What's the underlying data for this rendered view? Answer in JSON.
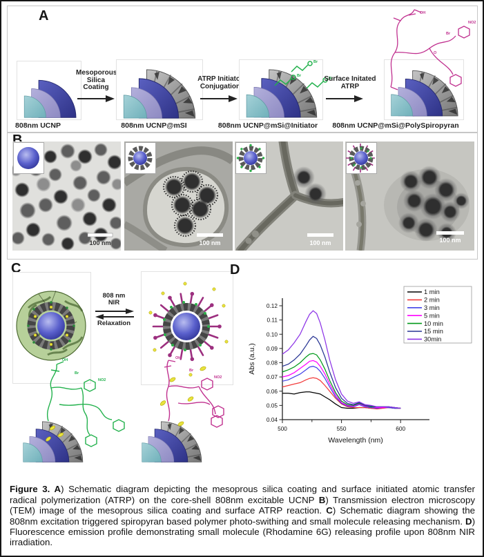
{
  "figure": {
    "panels": {
      "a": {
        "label": "A",
        "steps": [
          {
            "caption": "808nm UCNP"
          },
          {
            "caption": "808nm UCNP@mSI"
          },
          {
            "caption": "808nm UCNP@mSi@Initiator"
          },
          {
            "caption": "808nm UCNP@mSi@PolySpiropyran"
          }
        ],
        "arrows": [
          {
            "lines": [
              "Mesoporous",
              "Silica",
              "Coating"
            ]
          },
          {
            "lines": [
              "ATRP Initiator",
              "Conjugation"
            ]
          },
          {
            "lines": [
              "Surface Initated",
              "ATRP"
            ]
          }
        ]
      },
      "b": {
        "label": "B",
        "tem_images": [
          {
            "scale_bar": "100 nm"
          },
          {
            "scale_bar": "100 nm"
          },
          {
            "scale_bar": "100 nm"
          },
          {
            "scale_bar": "100 nm"
          }
        ]
      },
      "c": {
        "label": "C",
        "forward_arrow_lines": [
          "808 nm",
          "NIR"
        ],
        "reverse_arrow_label": "Relaxation"
      },
      "d": {
        "label": "D"
      }
    },
    "caption": {
      "segments": [
        {
          "text": "Figure 3.  ",
          "bold": true
        },
        {
          "text": "A",
          "bold": true
        },
        {
          "text": ") Schematic diagram depicting the mesoprous silica coating and surface initiated atomic transfer radical polymerization (ATRP) on the core-shell 808nm excitable UCNP ",
          "bold": false
        },
        {
          "text": "B",
          "bold": true
        },
        {
          "text": ") Transmission electron microscopy (TEM) image of the mesoprous silica coating and surface ATRP reaction. ",
          "bold": false
        },
        {
          "text": "C",
          "bold": true
        },
        {
          "text": ") Schematic diagram showing the 808nm excitation triggered spiropyran based polymer photo-swithing and small molecule releasing mechanism. ",
          "bold": false
        },
        {
          "text": "D",
          "bold": true
        },
        {
          "text": ") Fluorescence emission profile demonstrating small molecule (Rhodamine 6G) releasing profile upon 808nm NIR irradiation.",
          "bold": false
        }
      ]
    }
  },
  "molecule_labels": [
    "OH",
    "NO2",
    "Br",
    "O"
  ],
  "colors": {
    "ucnp_core_teal": "#79b4bd",
    "ucnp_mid_purple": "#9a96c8",
    "ucnp_shell_blue": "#3b3f9c",
    "silica_gray": "#8f8f8f",
    "initiator_green": "#22b14c",
    "spiropyran_magenta": "#c0308f",
    "released_yellow": "#e8e33e"
  },
  "chart_data": {
    "type": "line",
    "title": "",
    "xlabel": "Wavelength (nm)",
    "ylabel": "Abs (a.u.)",
    "xlim": [
      500,
      624
    ],
    "ylim": [
      0.04,
      0.125
    ],
    "xticks": [
      500,
      550,
      600
    ],
    "xticks_minor": [
      525,
      575
    ],
    "yticks": [
      0.04,
      0.05,
      0.06,
      0.07,
      0.08,
      0.09,
      0.1,
      0.11,
      0.12
    ],
    "grid": false,
    "legend_position": "top-right",
    "x": [
      500,
      505,
      510,
      515,
      520,
      523,
      526,
      529,
      532,
      536,
      540,
      545,
      550,
      555,
      560,
      565,
      570,
      575,
      580,
      585,
      590,
      595,
      600
    ],
    "series": [
      {
        "name": "1 min",
        "color": "#000000",
        "values": [
          0.0585,
          0.0585,
          0.058,
          0.059,
          0.0595,
          0.0595,
          0.059,
          0.0585,
          0.058,
          0.056,
          0.054,
          0.051,
          0.0485,
          0.048,
          0.048,
          0.0485,
          0.0485,
          0.048,
          0.048,
          0.0485,
          0.0485,
          0.048,
          0.048
        ]
      },
      {
        "name": "2 min",
        "color": "#f23c3c",
        "values": [
          0.063,
          0.064,
          0.065,
          0.066,
          0.068,
          0.069,
          0.0695,
          0.069,
          0.0675,
          0.064,
          0.06,
          0.055,
          0.051,
          0.049,
          0.0485,
          0.0485,
          0.0485,
          0.048,
          0.0475,
          0.048,
          0.0485,
          0.048,
          0.048
        ]
      },
      {
        "name": "3 min",
        "color": "#4343e8",
        "values": [
          0.067,
          0.068,
          0.07,
          0.072,
          0.075,
          0.077,
          0.0775,
          0.0765,
          0.074,
          0.069,
          0.063,
          0.056,
          0.0515,
          0.0495,
          0.049,
          0.0505,
          0.049,
          0.0485,
          0.048,
          0.0485,
          0.0485,
          0.048,
          0.048
        ]
      },
      {
        "name": "5 min",
        "color": "#ff00ff",
        "values": [
          0.07,
          0.071,
          0.073,
          0.076,
          0.079,
          0.081,
          0.0815,
          0.0805,
          0.0775,
          0.072,
          0.065,
          0.0575,
          0.052,
          0.05,
          0.0495,
          0.051,
          0.0495,
          0.049,
          0.0485,
          0.0485,
          0.049,
          0.0485,
          0.048
        ]
      },
      {
        "name": "10 min",
        "color": "#009919",
        "values": [
          0.0735,
          0.075,
          0.077,
          0.08,
          0.084,
          0.086,
          0.0865,
          0.0855,
          0.082,
          0.0755,
          0.0675,
          0.059,
          0.053,
          0.0505,
          0.05,
          0.0515,
          0.05,
          0.049,
          0.049,
          0.049,
          0.049,
          0.0485,
          0.048
        ]
      },
      {
        "name": "15 min",
        "color": "#273493",
        "values": [
          0.0775,
          0.079,
          0.082,
          0.086,
          0.092,
          0.096,
          0.0985,
          0.097,
          0.0925,
          0.084,
          0.0735,
          0.0625,
          0.055,
          0.0515,
          0.0505,
          0.052,
          0.05,
          0.0495,
          0.049,
          0.049,
          0.049,
          0.0485,
          0.048
        ]
      },
      {
        "name": "30min",
        "color": "#8c33e6",
        "values": [
          0.086,
          0.089,
          0.094,
          0.1,
          0.109,
          0.114,
          0.1165,
          0.1145,
          0.108,
          0.096,
          0.082,
          0.068,
          0.058,
          0.053,
          0.0515,
          0.0525,
          0.0505,
          0.05,
          0.049,
          0.049,
          0.049,
          0.0485,
          0.048
        ]
      }
    ]
  }
}
